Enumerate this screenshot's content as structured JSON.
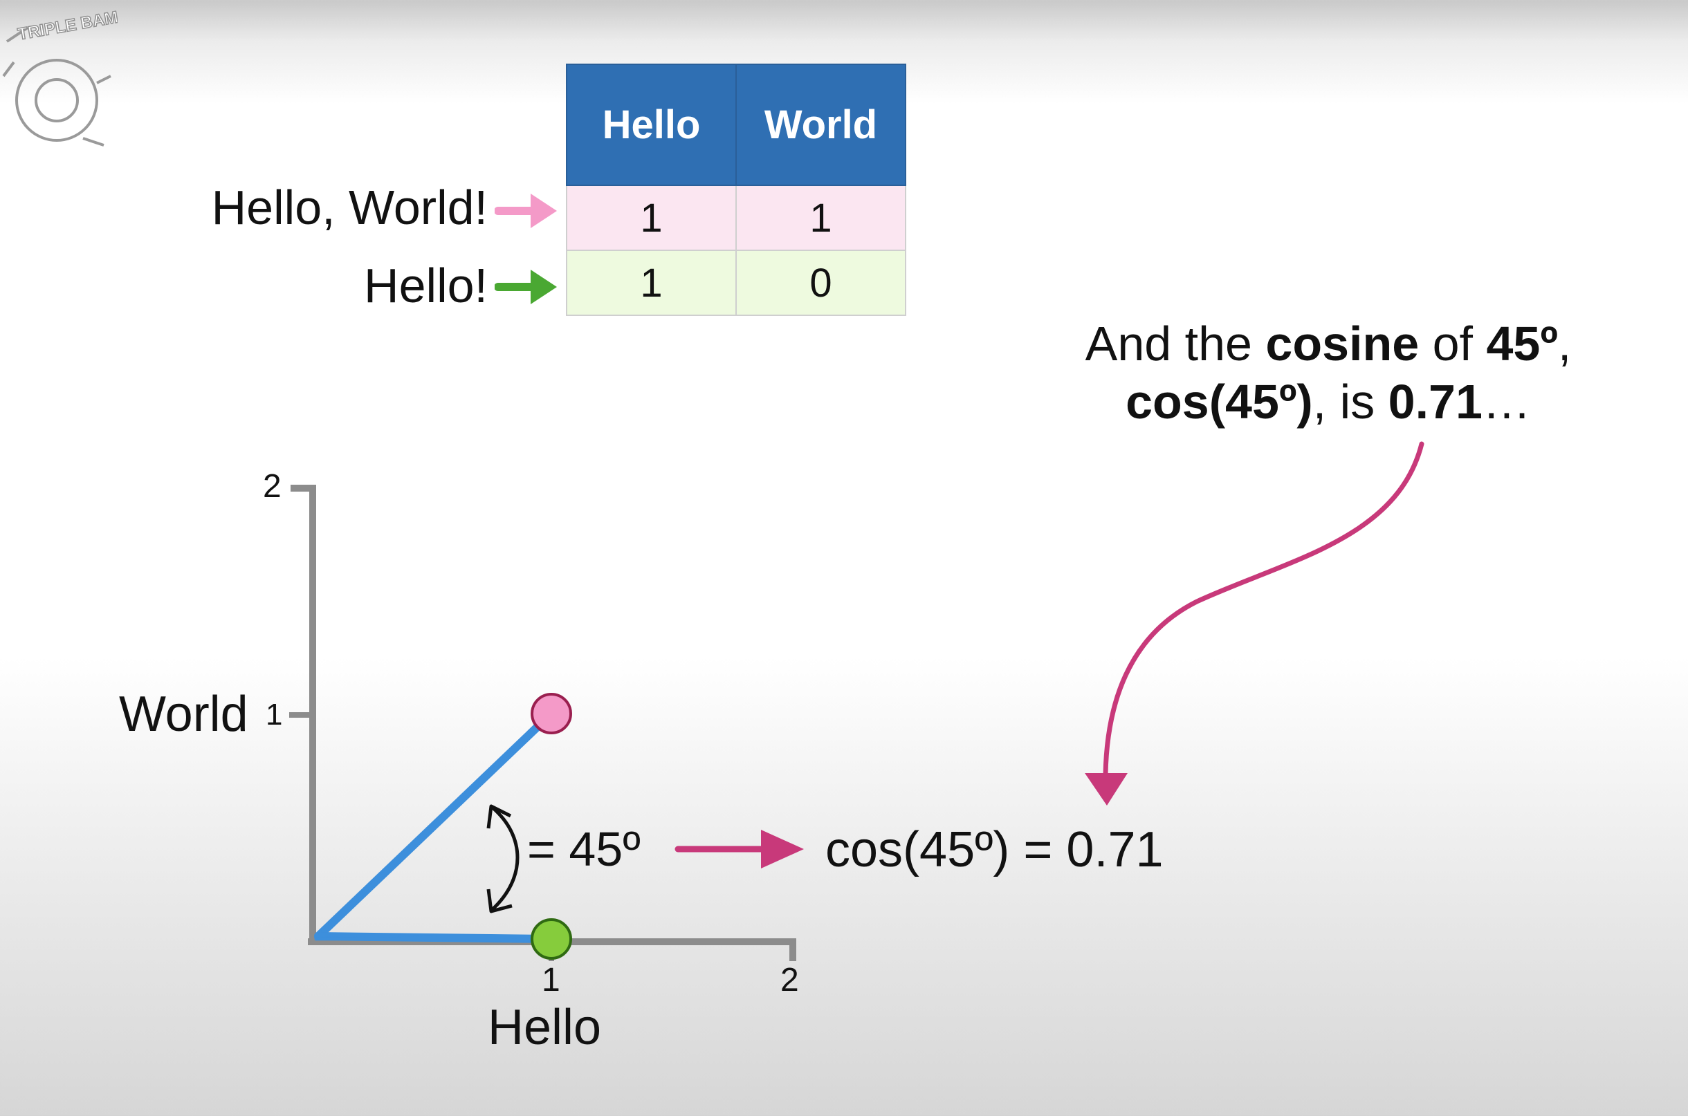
{
  "logo": {
    "text": "TRIPLE BAM!!"
  },
  "table": {
    "headers": [
      "Hello",
      "World"
    ],
    "rows": [
      {
        "label": "Hello, World!",
        "values": [
          "1",
          "1"
        ],
        "color": "#f49ac8"
      },
      {
        "label": "Hello!",
        "values": [
          "1",
          "0"
        ],
        "color": "#4aa832"
      }
    ]
  },
  "note": {
    "line1": {
      "p1": "And the ",
      "p2": "cosine",
      "p3": " of ",
      "p4": "45º",
      "p5": ","
    },
    "line2": {
      "p1": "cos(45º)",
      "p2": ", is ",
      "p3": "0.71",
      "p4": "…"
    }
  },
  "axes": {
    "xlabel": "Hello",
    "ylabel": "World",
    "x_ticks": [
      "1",
      "2"
    ],
    "y_ticks": [
      "1",
      "2"
    ]
  },
  "angle_label": "= 45º",
  "cos_result": "cos(45º) = 0.71",
  "colors": {
    "header_blue": "#2f6fb3",
    "vector_blue": "#3d8fdc",
    "pink_point": "#f49ac8",
    "green_point": "#86cc3c",
    "arrow_magenta": "#c8397a",
    "axis_gray": "#8c8c8c"
  },
  "points": [
    {
      "name": "Hello, World!",
      "x": 1,
      "y": 1
    },
    {
      "name": "Hello!",
      "x": 1,
      "y": 0
    }
  ]
}
